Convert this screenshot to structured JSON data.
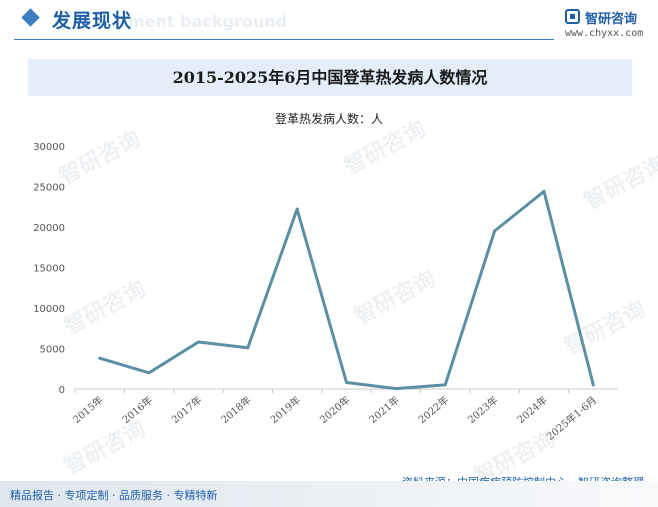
{
  "header": {
    "section_title": "发展现状",
    "section_watermark": "ment background",
    "logo_name": "智研咨询",
    "logo_url": "www.chyxx.com"
  },
  "chart_data": {
    "type": "line",
    "title": "2015-2025年6月中国登革热发病人数情况",
    "series_label": "登革热发病人数：人",
    "categories": [
      "2015年",
      "2016年",
      "2017年",
      "2018年",
      "2019年",
      "2020年",
      "2021年",
      "2022年",
      "2023年",
      "2024年",
      "2025年1-6月"
    ],
    "series": [
      {
        "values": [
          3800,
          2000,
          5800,
          5100,
          22200,
          800,
          50,
          500,
          19500,
          24400,
          500
        ]
      }
    ],
    "yticks": [
      "0",
      "5000",
      "10000",
      "15000",
      "20000",
      "25000",
      "30000"
    ],
    "ylim": [
      0,
      30000
    ],
    "grid": false,
    "line_color": "#5b8fa3"
  },
  "watermark_text": "智研咨询",
  "source": "资料来源：中国疾病预防控制中心、智研咨询整理",
  "footer": "精品报告 · 专项定制 · 品质服务 · 专精特新"
}
